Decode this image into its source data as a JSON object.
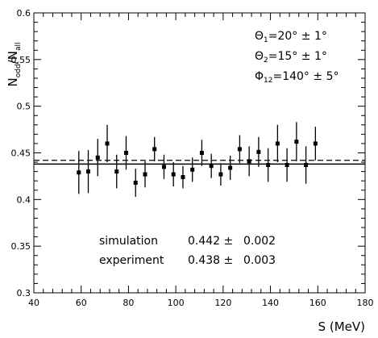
{
  "chart_data": {
    "type": "scatter",
    "xlabel": "S (MeV)",
    "ylabel_main": "N",
    "ylabel_num_sub": "odd",
    "ylabel_den_sub": "all",
    "xlim": [
      40,
      180
    ],
    "ylim": [
      0.3,
      0.6
    ],
    "x_ticks": [
      "40",
      "60",
      "80",
      "100",
      "120",
      "140",
      "160",
      "180"
    ],
    "y_ticks": [
      "0.3",
      "0.35",
      "0.4",
      "0.45",
      "0.5",
      "0.55",
      "0.6"
    ],
    "grid": false,
    "series": [
      {
        "x": [
          59,
          63,
          67,
          71,
          75,
          79,
          83,
          87,
          91,
          95,
          99,
          103,
          107,
          111,
          115,
          119,
          123,
          127,
          131,
          135,
          139,
          143,
          147,
          151,
          155,
          159
        ],
        "y": [
          0.429,
          0.43,
          0.445,
          0.46,
          0.43,
          0.45,
          0.418,
          0.427,
          0.454,
          0.435,
          0.427,
          0.424,
          0.432,
          0.45,
          0.436,
          0.427,
          0.434,
          0.454,
          0.441,
          0.451,
          0.437,
          0.46,
          0.437,
          0.462,
          0.437,
          0.46
        ],
        "yerr": [
          0.023,
          0.023,
          0.02,
          0.02,
          0.018,
          0.018,
          0.015,
          0.014,
          0.013,
          0.013,
          0.013,
          0.012,
          0.013,
          0.014,
          0.013,
          0.012,
          0.013,
          0.015,
          0.016,
          0.016,
          0.018,
          0.02,
          0.018,
          0.021,
          0.02,
          0.018
        ]
      }
    ],
    "reference_lines": [
      {
        "name": "simulation",
        "y": 0.442,
        "style": "dashed"
      },
      {
        "name": "experiment",
        "y": 0.438,
        "style": "solid"
      }
    ],
    "annotations": {
      "theta1": {
        "sym": "Θ",
        "sub": "1",
        "rest": "=20° ± 1°"
      },
      "theta2": {
        "sym": "Θ",
        "sub": "2",
        "rest": "=15° ± 1°"
      },
      "phi12": {
        "sym": "Φ",
        "sub": "12",
        "rest": "=140° ± 5°"
      }
    },
    "results": [
      {
        "label": "simulation",
        "value": "0.442 ±",
        "err": "0.002"
      },
      {
        "label": "experiment",
        "value": "0.438 ±",
        "err": "0.003"
      }
    ]
  }
}
